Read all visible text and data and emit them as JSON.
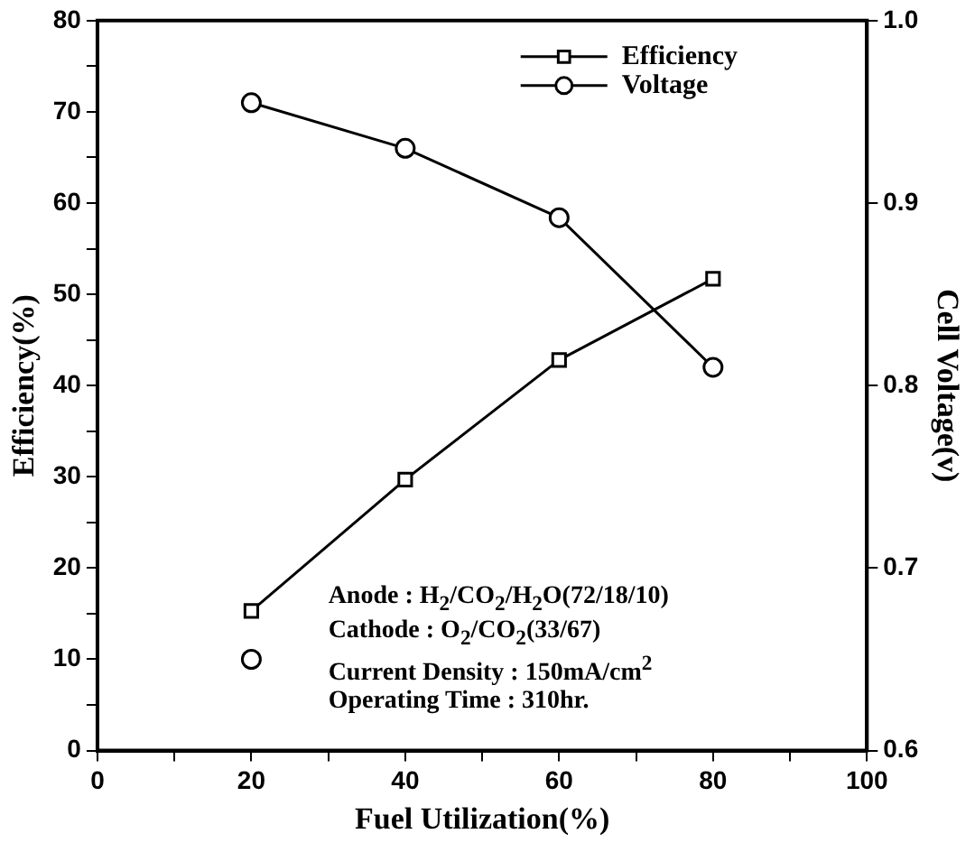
{
  "chart_data": {
    "type": "line",
    "xlabel": "Fuel Utilization(%)",
    "ylabel": "Efficiency(%)",
    "y2label": "Cell Voltage(v)",
    "x": [
      20,
      40,
      60,
      80
    ],
    "series": [
      {
        "name": "Efficiency",
        "color": "#000000",
        "values": [
          15.3,
          29.7,
          42.8,
          51.7
        ],
        "marker": "square"
      },
      {
        "name": "Voltage",
        "color": "#000000",
        "values": [
          0.955,
          0.93,
          0.892,
          0.81
        ],
        "axis": "y2",
        "marker": "circle"
      },
      {
        "type": "scatter",
        "color": "#000000",
        "x": [
          20
        ],
        "values": [
          10
        ],
        "marker": "circle"
      }
    ],
    "xlim": [
      0,
      100
    ],
    "xticks": [
      0,
      {
        "value": 10,
        "label": null
      },
      20,
      {
        "value": 30,
        "label": null
      },
      40,
      {
        "value": 50,
        "label": null
      },
      60,
      {
        "value": 70,
        "label": null
      },
      80,
      {
        "value": 90,
        "label": null
      },
      100
    ],
    "ylim": [
      0,
      80
    ],
    "yticks": [
      0,
      {
        "value": 5,
        "label": null
      },
      10,
      {
        "value": 15,
        "label": null
      },
      20,
      {
        "value": 25,
        "label": null
      },
      30,
      {
        "value": 35,
        "label": null
      },
      40,
      {
        "value": 45,
        "label": null
      },
      50,
      {
        "value": 55,
        "label": null
      },
      60,
      {
        "value": 65,
        "label": null
      },
      70,
      {
        "value": 75,
        "label": null
      },
      80
    ],
    "y2lim": [
      0.6,
      1.0
    ],
    "y2ticks": [
      0.6,
      0.7,
      0.8,
      0.9,
      {
        "value": 1.0,
        "label": "1.0"
      }
    ],
    "legend": "top right",
    "annotations": [
      {
        "text": "Anode : H$_{2}$/CO$_{2}$/H$_{2}$O(72/18/10)"
      },
      {
        "text": "Cathode : O$_{2}$/CO$_{2}$(33/67)"
      },
      {
        "text": "Current Density : 150mA/cm$^{2}$"
      },
      {
        "text": "Operating Time : 310hr."
      }
    ]
  }
}
